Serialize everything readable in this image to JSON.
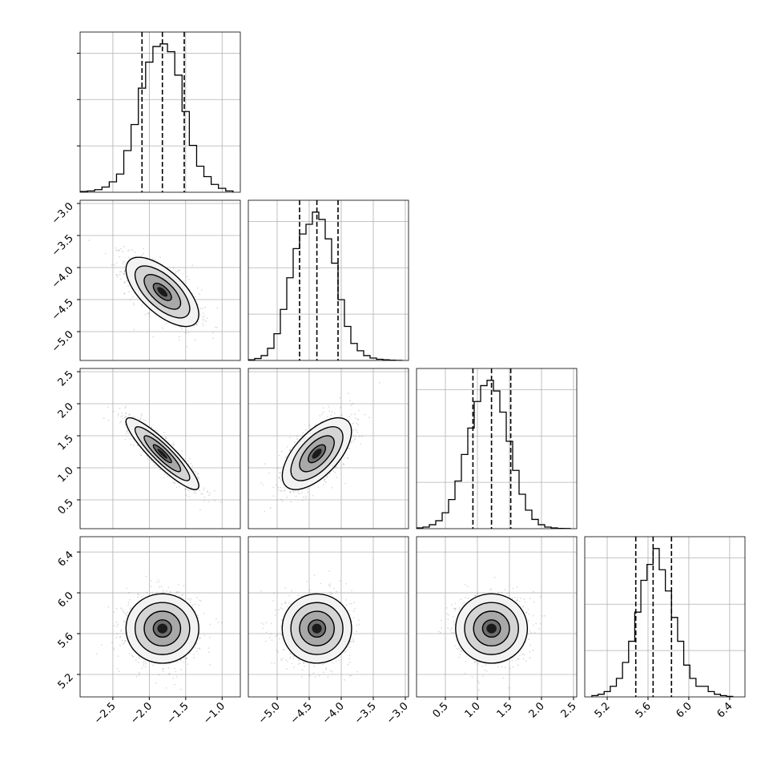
{
  "chart_data": {
    "type": "corner",
    "grid": true,
    "parameters": [
      {
        "index": 0,
        "range": [
          -2.95,
          -0.75
        ],
        "ticks": [
          -2.5,
          -2.0,
          -1.5,
          -1.0
        ],
        "tick_labels": [
          "−2.5",
          "−2.0",
          "−1.5",
          "−1.0"
        ],
        "quantiles": [
          -2.1,
          -1.82,
          -1.52
        ],
        "histogram": {
          "bin_edges": [
            -2.95,
            -2.85,
            -2.75,
            -2.65,
            -2.55,
            -2.45,
            -2.35,
            -2.25,
            -2.15,
            -2.05,
            -1.95,
            -1.85,
            -1.75,
            -1.65,
            -1.55,
            -1.45,
            -1.35,
            -1.25,
            -1.15,
            -1.05,
            -0.95,
            -0.85
          ],
          "counts": [
            0.3,
            0.5,
            1,
            2,
            4,
            7,
            16,
            26,
            40,
            50,
            56,
            57,
            54,
            45,
            31,
            18,
            10,
            6,
            3,
            1.5,
            0.5
          ]
        }
      },
      {
        "index": 1,
        "range": [
          -5.45,
          -2.95
        ],
        "ticks": [
          -5.0,
          -4.5,
          -4.0,
          -3.5,
          -3.0
        ],
        "tick_labels": [
          "−5.0",
          "−4.5",
          "−4.0",
          "−3.5",
          "−3.0"
        ],
        "quantiles": [
          -4.65,
          -4.38,
          -4.05
        ],
        "histogram": {
          "bin_edges": [
            -5.45,
            -5.35,
            -5.25,
            -5.15,
            -5.05,
            -4.95,
            -4.85,
            -4.75,
            -4.65,
            -4.55,
            -4.45,
            -4.35,
            -4.25,
            -4.15,
            -4.05,
            -3.95,
            -3.85,
            -3.75,
            -3.65,
            -3.55,
            -3.45,
            -3.35,
            -3.25,
            -3.15,
            -3.05
          ],
          "counts": [
            0.3,
            0.8,
            2,
            5,
            11,
            21,
            34,
            46,
            52,
            56,
            61,
            58,
            50,
            40,
            25,
            14,
            7,
            4,
            2,
            1,
            0.5,
            0.3,
            0.1,
            0.05
          ]
        }
      },
      {
        "index": 2,
        "range": [
          0.05,
          2.55
        ],
        "ticks": [
          0.5,
          1.0,
          1.5,
          2.0,
          2.5
        ],
        "tick_labels": [
          "0.5",
          "1.0",
          "1.5",
          "2.0",
          "2.5"
        ],
        "quantiles": [
          0.93,
          1.22,
          1.52
        ],
        "histogram": {
          "bin_edges": [
            0.05,
            0.15,
            0.25,
            0.35,
            0.45,
            0.55,
            0.65,
            0.75,
            0.85,
            0.95,
            1.05,
            1.15,
            1.25,
            1.35,
            1.45,
            1.55,
            1.65,
            1.75,
            1.85,
            1.95,
            2.05,
            2.15,
            2.25,
            2.35,
            2.45
          ],
          "counts": [
            0.3,
            0.6,
            1.5,
            3,
            6,
            11,
            18,
            28,
            38,
            48,
            54,
            56,
            52,
            44,
            33,
            22,
            13,
            7,
            3.5,
            1.5,
            0.6,
            0.3,
            0.1,
            0.05
          ]
        }
      },
      {
        "index": 3,
        "range": [
          4.98,
          6.55
        ],
        "ticks": [
          5.2,
          5.6,
          6.0,
          6.4
        ],
        "tick_labels": [
          "5.2",
          "5.6",
          "6.0",
          "6.4"
        ],
        "quantiles": [
          5.48,
          5.65,
          5.83
        ],
        "histogram": {
          "bin_edges": [
            5.05,
            5.11,
            5.17,
            5.23,
            5.29,
            5.35,
            5.41,
            5.47,
            5.53,
            5.59,
            5.65,
            5.71,
            5.77,
            5.83,
            5.89,
            5.95,
            6.01,
            6.07,
            6.13,
            6.19,
            6.25,
            6.31,
            6.37,
            6.43
          ],
          "counts": [
            0.5,
            1,
            2,
            4,
            7,
            13,
            21,
            32,
            44,
            50,
            56,
            48,
            40,
            30,
            21,
            12,
            7,
            4,
            4,
            2,
            1,
            0.5,
            0.2
          ]
        }
      }
    ],
    "pairs": [
      {
        "row": 1,
        "col": 0,
        "mean_x": -1.82,
        "mean_y": -4.38,
        "sd_x": 0.25,
        "sd_y": 0.27,
        "rho": -0.65
      },
      {
        "row": 2,
        "col": 0,
        "mean_x": -1.82,
        "mean_y": 1.22,
        "sd_x": 0.25,
        "sd_y": 0.28,
        "rho": -0.9
      },
      {
        "row": 2,
        "col": 1,
        "mean_x": -4.38,
        "mean_y": 1.22,
        "sd_x": 0.27,
        "sd_y": 0.28,
        "rho": 0.62
      },
      {
        "row": 3,
        "col": 0,
        "mean_x": -1.82,
        "mean_y": 5.65,
        "sd_x": 0.25,
        "sd_y": 0.17,
        "rho": 0.0
      },
      {
        "row": 3,
        "col": 1,
        "mean_x": -4.38,
        "mean_y": 5.65,
        "sd_x": 0.27,
        "sd_y": 0.17,
        "rho": 0.0
      },
      {
        "row": 3,
        "col": 2,
        "mean_x": 1.22,
        "mean_y": 5.65,
        "sd_x": 0.28,
        "sd_y": 0.17,
        "rho": 0.0
      }
    ],
    "contour_levels_sigma": [
      0.5,
      1.0,
      1.5,
      2.0
    ],
    "scatter_points_per_panel": 1000
  }
}
